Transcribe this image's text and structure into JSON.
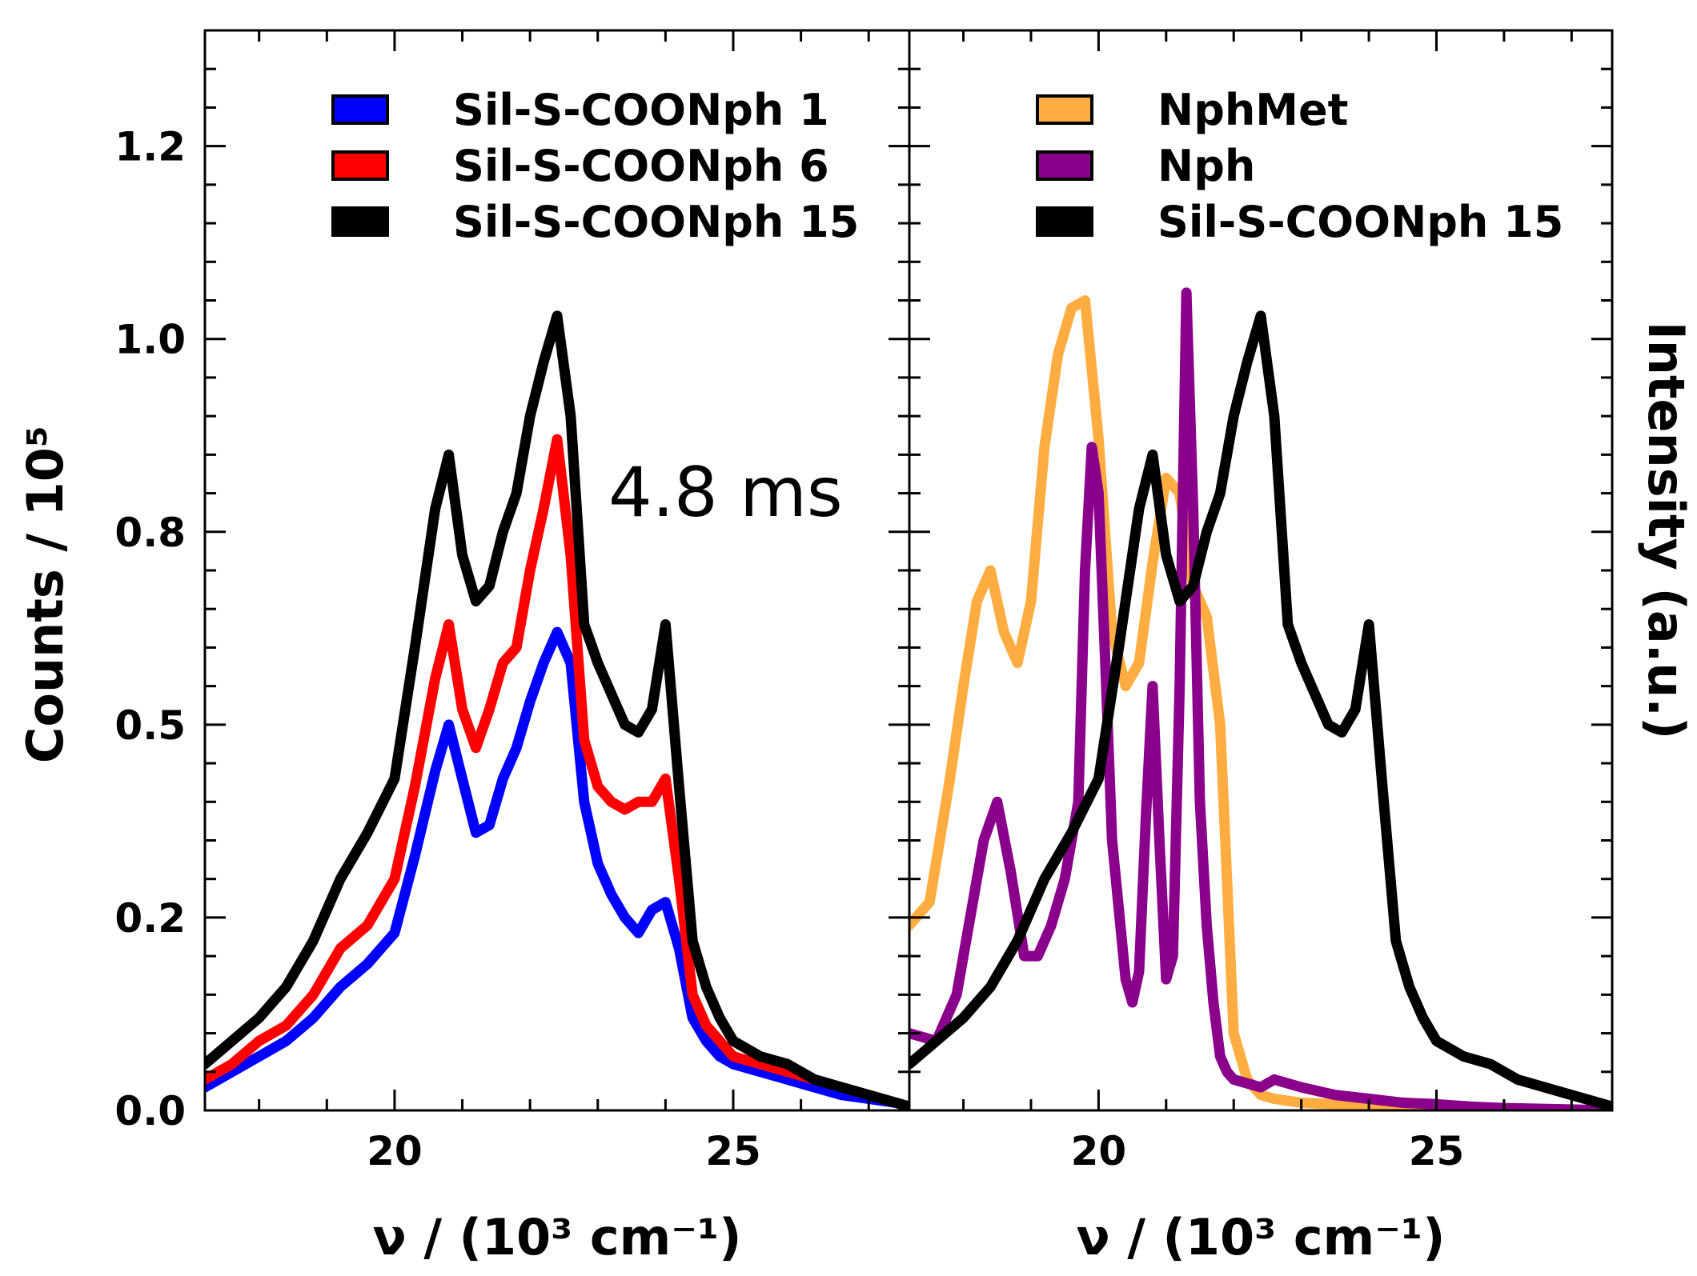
{
  "chart_data": [
    {
      "type": "line",
      "panel": "left",
      "xlabel": "ν / (10³ cm⁻¹)",
      "ylabel": "Counts / 10⁵",
      "xlim": [
        17.2,
        27.6
      ],
      "ylim": [
        0.0,
        1.4
      ],
      "xticks": [
        20,
        25
      ],
      "xtick_labels": [
        "20",
        "25"
      ],
      "yticks": [
        0.0,
        0.25,
        0.5,
        0.75,
        1.0,
        1.25
      ],
      "ytick_labels": [
        "0.0",
        "0.2",
        "0.5",
        "0.8",
        "1.0",
        "1.2"
      ],
      "annotation": "4.8 ms",
      "legend_position": "top",
      "series": [
        {
          "name": "Sil-S-COONph 1",
          "color": "#0000ff",
          "x": [
            17.2,
            17.6,
            18.0,
            18.4,
            18.8,
            19.2,
            19.6,
            20.0,
            20.3,
            20.6,
            20.8,
            21.0,
            21.2,
            21.4,
            21.6,
            21.8,
            22.0,
            22.2,
            22.4,
            22.6,
            22.8,
            23.0,
            23.2,
            23.4,
            23.6,
            23.8,
            24.0,
            24.2,
            24.4,
            24.6,
            24.8,
            25.0,
            25.4,
            25.8,
            26.2,
            26.6,
            27.0,
            27.4,
            27.6
          ],
          "y": [
            0.03,
            0.05,
            0.07,
            0.09,
            0.12,
            0.16,
            0.19,
            0.23,
            0.33,
            0.44,
            0.5,
            0.43,
            0.36,
            0.37,
            0.43,
            0.47,
            0.53,
            0.58,
            0.62,
            0.58,
            0.4,
            0.32,
            0.28,
            0.25,
            0.23,
            0.26,
            0.27,
            0.21,
            0.12,
            0.09,
            0.07,
            0.06,
            0.05,
            0.04,
            0.03,
            0.02,
            0.015,
            0.01,
            0.005
          ]
        },
        {
          "name": "Sil-S-COONph 6",
          "color": "#ff0000",
          "x": [
            17.2,
            17.6,
            18.0,
            18.4,
            18.8,
            19.2,
            19.6,
            20.0,
            20.3,
            20.6,
            20.8,
            21.0,
            21.2,
            21.4,
            21.6,
            21.8,
            22.0,
            22.2,
            22.4,
            22.6,
            22.8,
            23.0,
            23.2,
            23.4,
            23.6,
            23.8,
            24.0,
            24.2,
            24.4,
            24.6,
            24.8,
            25.0,
            25.4,
            25.8,
            26.2,
            26.6,
            27.0,
            27.4,
            27.6
          ],
          "y": [
            0.04,
            0.06,
            0.09,
            0.11,
            0.15,
            0.21,
            0.24,
            0.3,
            0.42,
            0.56,
            0.63,
            0.52,
            0.47,
            0.52,
            0.58,
            0.6,
            0.7,
            0.78,
            0.87,
            0.72,
            0.48,
            0.42,
            0.4,
            0.39,
            0.4,
            0.4,
            0.43,
            0.3,
            0.15,
            0.11,
            0.09,
            0.07,
            0.06,
            0.05,
            0.04,
            0.03,
            0.02,
            0.01,
            0.005
          ]
        },
        {
          "name": "Sil-S-COONph 15",
          "color": "#000000",
          "x": [
            17.2,
            17.6,
            18.0,
            18.4,
            18.8,
            19.2,
            19.6,
            20.0,
            20.3,
            20.6,
            20.8,
            21.0,
            21.2,
            21.4,
            21.6,
            21.8,
            22.0,
            22.2,
            22.4,
            22.6,
            22.8,
            23.0,
            23.2,
            23.4,
            23.6,
            23.8,
            24.0,
            24.2,
            24.4,
            24.6,
            24.8,
            25.0,
            25.4,
            25.8,
            26.2,
            26.6,
            27.0,
            27.4,
            27.6
          ],
          "y": [
            0.06,
            0.09,
            0.12,
            0.16,
            0.22,
            0.3,
            0.36,
            0.43,
            0.6,
            0.78,
            0.85,
            0.72,
            0.66,
            0.68,
            0.75,
            0.8,
            0.9,
            0.97,
            1.03,
            0.9,
            0.63,
            0.58,
            0.54,
            0.5,
            0.49,
            0.52,
            0.63,
            0.42,
            0.22,
            0.16,
            0.12,
            0.09,
            0.07,
            0.06,
            0.04,
            0.03,
            0.02,
            0.01,
            0.005
          ]
        }
      ]
    },
    {
      "type": "line",
      "panel": "right",
      "xlabel": "ν / (10³ cm⁻¹)",
      "ylabel": "Intensity (a.u.)",
      "xlim": [
        17.2,
        27.6
      ],
      "ylim": [
        0.0,
        1.4
      ],
      "xticks": [
        20,
        25
      ],
      "xtick_labels": [
        "20",
        "25"
      ],
      "legend_position": "top",
      "series": [
        {
          "name": "NphMet",
          "color": "#ffad40",
          "x": [
            17.2,
            17.5,
            17.8,
            18.0,
            18.2,
            18.4,
            18.6,
            18.8,
            19.0,
            19.2,
            19.4,
            19.6,
            19.8,
            20.0,
            20.2,
            20.4,
            20.6,
            20.8,
            21.0,
            21.2,
            21.4,
            21.6,
            21.8,
            21.9,
            22.0,
            22.2,
            22.4,
            22.6,
            23.0,
            23.5,
            24.0,
            24.5,
            25.0,
            25.5,
            26.0,
            27.6
          ],
          "y": [
            0.24,
            0.27,
            0.43,
            0.55,
            0.66,
            0.7,
            0.62,
            0.58,
            0.66,
            0.86,
            0.98,
            1.04,
            1.05,
            0.87,
            0.62,
            0.55,
            0.58,
            0.71,
            0.82,
            0.8,
            0.68,
            0.64,
            0.5,
            0.3,
            0.1,
            0.04,
            0.02,
            0.015,
            0.01,
            0.008,
            0.006,
            0.004,
            0.003,
            0.002,
            0.001,
            0.0
          ]
        },
        {
          "name": "Nph",
          "color": "#8b008b",
          "x": [
            17.2,
            17.6,
            17.9,
            18.1,
            18.3,
            18.5,
            18.7,
            18.9,
            19.1,
            19.3,
            19.5,
            19.7,
            19.8,
            19.9,
            20.0,
            20.1,
            20.2,
            20.4,
            20.5,
            20.6,
            20.7,
            20.8,
            20.9,
            21.0,
            21.1,
            21.2,
            21.3,
            21.4,
            21.5,
            21.6,
            21.7,
            21.8,
            21.9,
            22.0,
            22.2,
            22.4,
            22.6,
            23.0,
            23.5,
            24.0,
            24.5,
            25.0,
            25.5,
            26.0,
            27.6
          ],
          "y": [
            0.1,
            0.09,
            0.15,
            0.25,
            0.35,
            0.4,
            0.31,
            0.2,
            0.2,
            0.24,
            0.3,
            0.4,
            0.7,
            0.86,
            0.8,
            0.58,
            0.35,
            0.17,
            0.14,
            0.18,
            0.38,
            0.55,
            0.35,
            0.17,
            0.2,
            0.55,
            1.06,
            0.78,
            0.4,
            0.24,
            0.14,
            0.07,
            0.05,
            0.04,
            0.035,
            0.03,
            0.04,
            0.03,
            0.02,
            0.015,
            0.01,
            0.008,
            0.005,
            0.003,
            0.0
          ]
        },
        {
          "name": "Sil-S-COONph 15",
          "color": "#000000",
          "x": [
            17.2,
            17.6,
            18.0,
            18.4,
            18.8,
            19.2,
            19.6,
            20.0,
            20.3,
            20.6,
            20.8,
            21.0,
            21.2,
            21.4,
            21.6,
            21.8,
            22.0,
            22.2,
            22.4,
            22.6,
            22.8,
            23.0,
            23.2,
            23.4,
            23.6,
            23.8,
            24.0,
            24.2,
            24.4,
            24.6,
            24.8,
            25.0,
            25.4,
            25.8,
            26.2,
            26.6,
            27.0,
            27.4,
            27.6
          ],
          "y": [
            0.06,
            0.09,
            0.12,
            0.16,
            0.22,
            0.3,
            0.36,
            0.43,
            0.6,
            0.78,
            0.85,
            0.72,
            0.66,
            0.68,
            0.75,
            0.8,
            0.9,
            0.97,
            1.03,
            0.9,
            0.63,
            0.58,
            0.54,
            0.5,
            0.49,
            0.52,
            0.63,
            0.42,
            0.22,
            0.16,
            0.12,
            0.09,
            0.07,
            0.06,
            0.04,
            0.03,
            0.02,
            0.01,
            0.005
          ]
        }
      ]
    }
  ]
}
